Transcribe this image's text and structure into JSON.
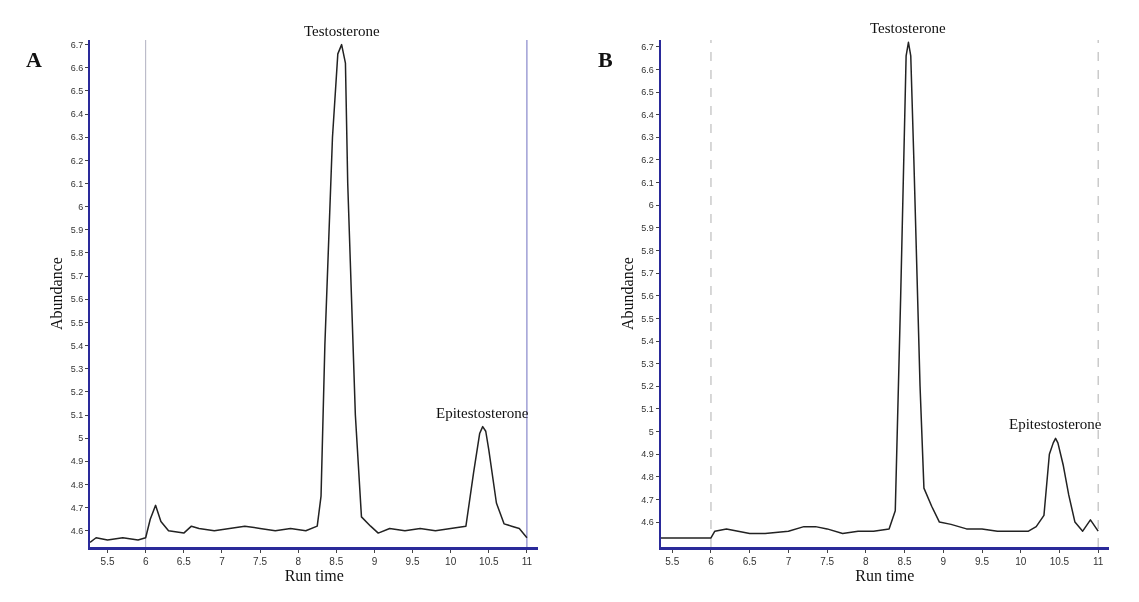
{
  "chart_data": [
    {
      "type": "line",
      "title": "A",
      "xlabel": "Run time",
      "ylabel": "Abundance",
      "grid": false,
      "xlim": [
        5.27,
        11.15
      ],
      "xticks": [
        5.5,
        6,
        6.5,
        7,
        7.5,
        8,
        8.5,
        9,
        9.5,
        10,
        10.5,
        11
      ],
      "ylim": [
        4.53,
        6.72
      ],
      "yticks": [
        4.6,
        4.7,
        4.8,
        4.9,
        5,
        5.1,
        5.2,
        5.3,
        5.4,
        5.5,
        5.6,
        5.7,
        5.8,
        5.9,
        6,
        6.1,
        6.2,
        6.3,
        6.4,
        6.5,
        6.6,
        6.7
      ],
      "series": [
        {
          "color": "#222222",
          "x": [
            5.27,
            5.35,
            5.5,
            5.7,
            5.9,
            6.0,
            6.06,
            6.13,
            6.2,
            6.3,
            6.5,
            6.6,
            6.7,
            6.9,
            7.1,
            7.3,
            7.5,
            7.7,
            7.9,
            8.1,
            8.25,
            8.3,
            8.35,
            8.45,
            8.52,
            8.57,
            8.62,
            8.65,
            8.75,
            8.83,
            8.95,
            9.05,
            9.2,
            9.4,
            9.6,
            9.8,
            10.0,
            10.2,
            10.3,
            10.38,
            10.42,
            10.46,
            10.5,
            10.6,
            10.7,
            10.8,
            10.9,
            11.0
          ],
          "values": [
            4.55,
            4.57,
            4.56,
            4.57,
            4.56,
            4.57,
            4.65,
            4.71,
            4.64,
            4.6,
            4.59,
            4.62,
            4.61,
            4.6,
            4.61,
            4.62,
            4.61,
            4.6,
            4.61,
            4.6,
            4.62,
            4.75,
            5.4,
            6.3,
            6.66,
            6.7,
            6.62,
            6.1,
            5.1,
            4.66,
            4.62,
            4.59,
            4.61,
            4.6,
            4.61,
            4.6,
            4.61,
            4.62,
            4.85,
            5.02,
            5.05,
            5.03,
            4.95,
            4.72,
            4.63,
            4.62,
            4.61,
            4.57
          ]
        }
      ],
      "ref_lines": [
        {
          "axis": "x",
          "value": 6,
          "color": "#b0b0c0"
        },
        {
          "axis": "x",
          "value": 11,
          "color": "#7070c0"
        }
      ],
      "annotations": [
        {
          "text": "Testosterone",
          "x": 8.57,
          "y": 6.7
        },
        {
          "text": "Epitestosterone",
          "x": 10.42,
          "y": 5.05
        }
      ]
    },
    {
      "type": "line",
      "title": "B",
      "xlabel": "Run time",
      "ylabel": "Abundance",
      "grid": false,
      "xlim": [
        5.35,
        11.14
      ],
      "xticks": [
        5.5,
        6,
        6.5,
        7,
        7.5,
        8,
        8.5,
        9,
        9.5,
        10,
        10.5,
        11
      ],
      "ylim": [
        4.49,
        6.73
      ],
      "yticks": [
        4.6,
        4.7,
        4.8,
        4.9,
        5,
        5.1,
        5.2,
        5.3,
        5.4,
        5.5,
        5.6,
        5.7,
        5.8,
        5.9,
        6,
        6.1,
        6.2,
        6.3,
        6.4,
        6.5,
        6.6,
        6.7
      ],
      "series": [
        {
          "color": "#222222",
          "x": [
            5.35,
            5.6,
            5.9,
            6.0,
            6.05,
            6.2,
            6.35,
            6.5,
            6.7,
            7.0,
            7.2,
            7.35,
            7.5,
            7.7,
            7.9,
            8.1,
            8.3,
            8.38,
            8.45,
            8.52,
            8.55,
            8.58,
            8.62,
            8.7,
            8.75,
            8.85,
            8.95,
            9.1,
            9.3,
            9.5,
            9.7,
            9.9,
            10.1,
            10.2,
            10.3,
            10.37,
            10.42,
            10.45,
            10.48,
            10.55,
            10.62,
            10.7,
            10.8,
            10.9,
            11.0
          ],
          "values": [
            4.53,
            4.53,
            4.53,
            4.53,
            4.56,
            4.57,
            4.56,
            4.55,
            4.55,
            4.56,
            4.58,
            4.58,
            4.57,
            4.55,
            4.56,
            4.56,
            4.57,
            4.65,
            5.6,
            6.66,
            6.72,
            6.66,
            6.2,
            5.2,
            4.75,
            4.67,
            4.6,
            4.59,
            4.57,
            4.57,
            4.56,
            4.56,
            4.56,
            4.58,
            4.63,
            4.9,
            4.95,
            4.97,
            4.95,
            4.85,
            4.72,
            4.6,
            4.56,
            4.61,
            4.56
          ]
        }
      ],
      "ref_lines": [
        {
          "axis": "x",
          "value": 6,
          "color": "#b0b0b0",
          "line_style": "dashed"
        },
        {
          "axis": "x",
          "value": 11,
          "color": "#b0b0b0",
          "line_style": "dashed"
        }
      ],
      "annotations": [
        {
          "text": "Testosterone",
          "x": 8.55,
          "y": 6.72
        },
        {
          "text": "Epitestosterone",
          "x": 10.45,
          "y": 4.97
        }
      ]
    }
  ]
}
